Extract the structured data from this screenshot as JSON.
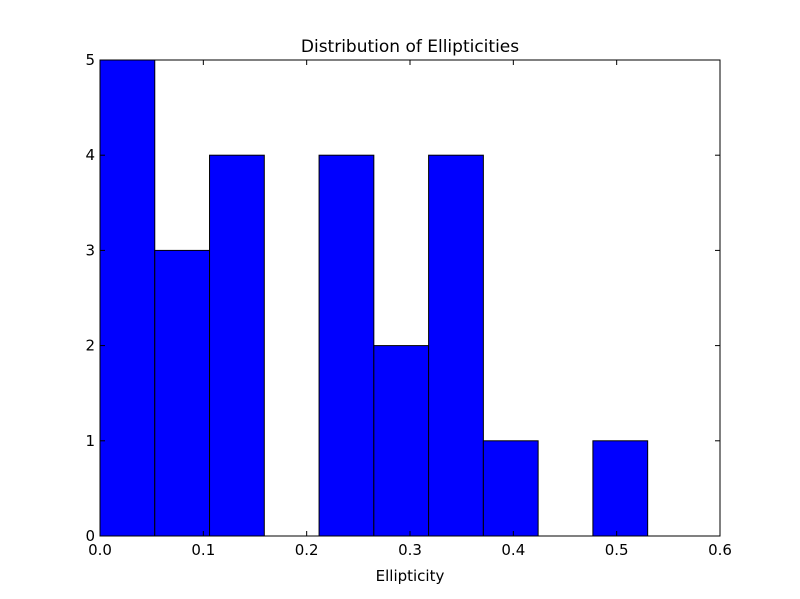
{
  "chart_data": {
    "type": "bar",
    "title": "Distribution of Ellipticities",
    "xlabel": "Ellipticity",
    "ylabel": "",
    "xlim": [
      0.0,
      0.6
    ],
    "ylim": [
      0,
      5
    ],
    "x_ticks": [
      "0.0",
      "0.1",
      "0.2",
      "0.3",
      "0.4",
      "0.5",
      "0.6"
    ],
    "y_ticks": [
      "0",
      "1",
      "2",
      "3",
      "4",
      "5"
    ],
    "grid": false,
    "bar_color": "#0000ff",
    "edge_color": "#000000",
    "bins": [
      {
        "x0": 0.0,
        "x1": 0.053,
        "count": 5
      },
      {
        "x0": 0.053,
        "x1": 0.106,
        "count": 3
      },
      {
        "x0": 0.106,
        "x1": 0.159,
        "count": 4
      },
      {
        "x0": 0.159,
        "x1": 0.212,
        "count": 0
      },
      {
        "x0": 0.212,
        "x1": 0.265,
        "count": 4
      },
      {
        "x0": 0.265,
        "x1": 0.318,
        "count": 2
      },
      {
        "x0": 0.318,
        "x1": 0.371,
        "count": 4
      },
      {
        "x0": 0.371,
        "x1": 0.424,
        "count": 1
      },
      {
        "x0": 0.424,
        "x1": 0.477,
        "count": 0
      },
      {
        "x0": 0.477,
        "x1": 0.53,
        "count": 1
      }
    ]
  }
}
